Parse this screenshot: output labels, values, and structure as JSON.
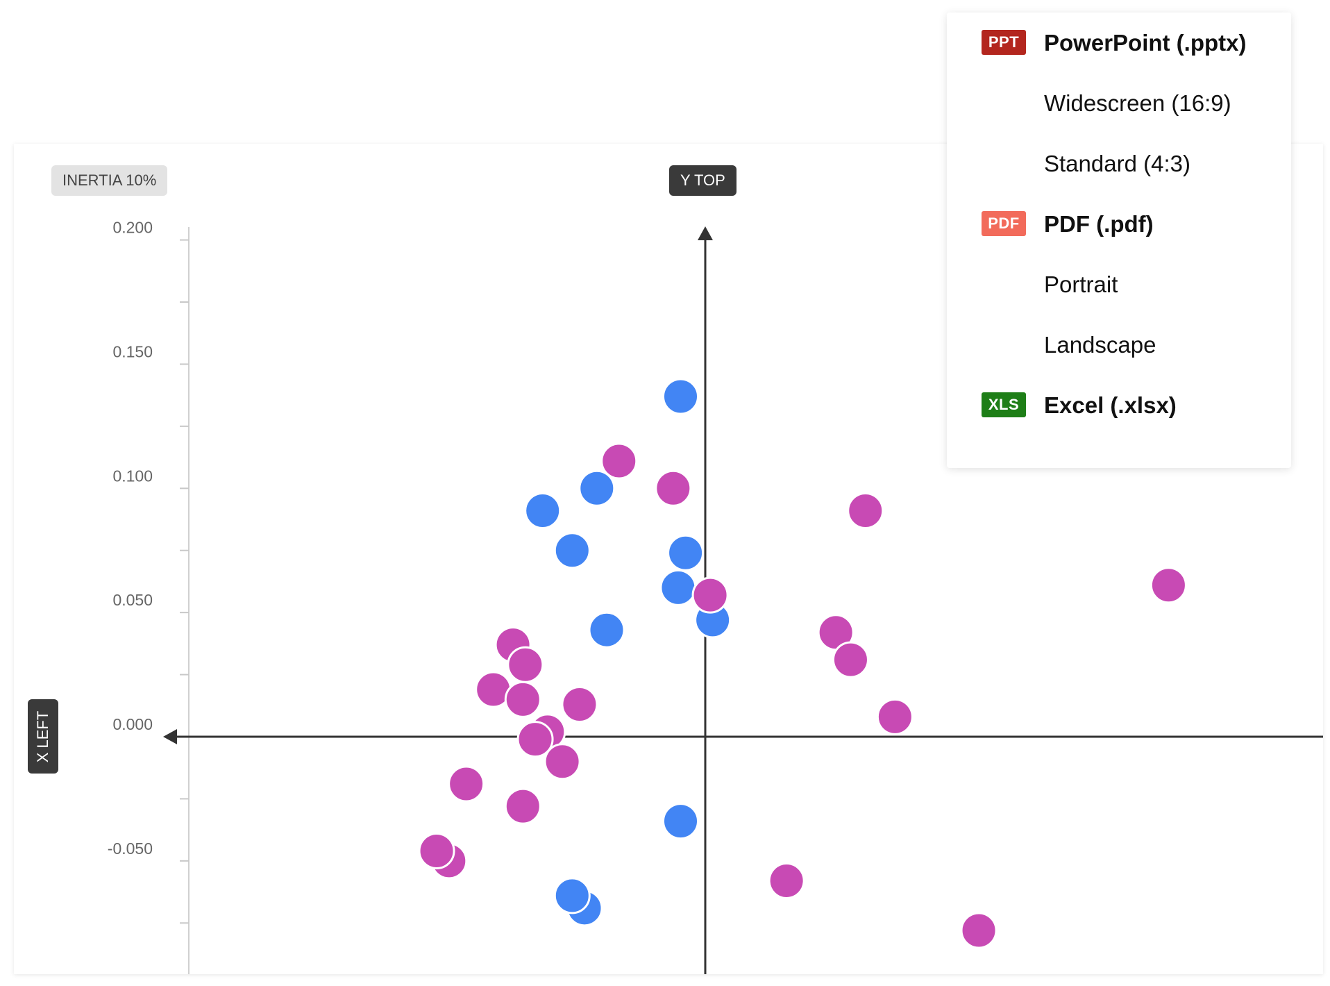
{
  "chart_data": {
    "type": "scatter",
    "title": "",
    "badges": {
      "inertia": "INERTIA 10%",
      "y_top": "Y TOP",
      "x_left": "X LEFT"
    },
    "y_ticks": [
      "0.200",
      "0.150",
      "0.100",
      "0.050",
      "0.000",
      "-0.050"
    ],
    "ylim": [
      -0.095,
      0.205
    ],
    "xlim": [
      -0.17,
      0.19
    ],
    "colors": {
      "blue": "#4285f4",
      "magenta": "#c84ab4"
    },
    "series": [
      {
        "name": "blue",
        "color": "#4285f4",
        "points": [
          [
            -0.01,
            0.137
          ],
          [
            -0.044,
            0.1
          ],
          [
            -0.066,
            0.091
          ],
          [
            -0.054,
            0.075
          ],
          [
            -0.008,
            0.074
          ],
          [
            -0.011,
            0.06
          ],
          [
            0.003,
            0.047
          ],
          [
            -0.04,
            0.043
          ],
          [
            -0.01,
            -0.034
          ],
          [
            -0.049,
            -0.069
          ],
          [
            -0.054,
            -0.064
          ]
        ]
      },
      {
        "name": "magenta",
        "color": "#c84ab4",
        "points": [
          [
            -0.035,
            0.111
          ],
          [
            -0.013,
            0.1
          ],
          [
            0.065,
            0.091
          ],
          [
            0.188,
            0.061
          ],
          [
            0.002,
            0.057
          ],
          [
            0.053,
            0.042
          ],
          [
            0.059,
            0.031
          ],
          [
            0.077,
            0.008
          ],
          [
            -0.078,
            0.037
          ],
          [
            -0.073,
            0.029
          ],
          [
            -0.086,
            0.019
          ],
          [
            -0.074,
            0.015
          ],
          [
            -0.051,
            0.013
          ],
          [
            -0.064,
            0.002
          ],
          [
            -0.069,
            -0.001
          ],
          [
            -0.058,
            -0.01
          ],
          [
            -0.097,
            -0.019
          ],
          [
            -0.074,
            -0.028
          ],
          [
            -0.104,
            -0.05
          ],
          [
            -0.109,
            -0.046
          ],
          [
            0.033,
            -0.058
          ],
          [
            0.111,
            -0.078
          ]
        ]
      }
    ]
  },
  "export_menu": {
    "items": [
      {
        "badge": "PPT",
        "badge_color": "#b3261e",
        "label": "PowerPoint (.pptx)",
        "bold": true,
        "name": "menu-item-pptx"
      },
      {
        "badge": "",
        "label": "Widescreen (16:9)",
        "bold": false,
        "name": "menu-item-widescreen"
      },
      {
        "badge": "",
        "label": "Standard (4:3)",
        "bold": false,
        "name": "menu-item-standard"
      },
      {
        "badge": "PDF",
        "badge_color": "#f26b5b",
        "label": "PDF (.pdf)",
        "bold": true,
        "name": "menu-item-pdf"
      },
      {
        "badge": "",
        "label": "Portrait",
        "bold": false,
        "name": "menu-item-portrait"
      },
      {
        "badge": "",
        "label": "Landscape",
        "bold": false,
        "name": "menu-item-landscape"
      },
      {
        "badge": "XLS",
        "badge_color": "#1e7e17",
        "label": "Excel (.xlsx)",
        "bold": true,
        "name": "menu-item-xlsx"
      }
    ]
  }
}
